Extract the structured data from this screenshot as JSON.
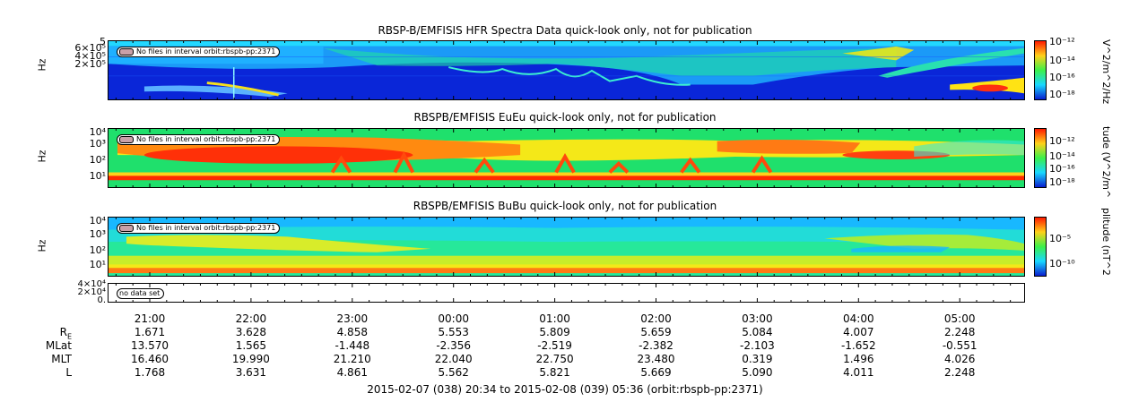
{
  "panels": [
    {
      "title": "RBSP-B/EMFISIS  HFR Spectra Data quick-look only, not for publication",
      "ylabel": "Hz",
      "yticks": [
        "6×10⁵",
        "4×10⁵",
        "2×10⁵",
        "5"
      ],
      "notice": "No files in interval orbit:rbspb-pp:2371",
      "colorbar_title": "V^2/m^2/Hz",
      "colorbar_ticks": [
        "10⁻¹²",
        "10⁻¹⁴",
        "10⁻¹⁶",
        "10⁻¹⁸"
      ]
    },
    {
      "title": "RBSPB/EMFISIS  EuEu quick-look only, not for publication",
      "ylabel": "Hz",
      "yticks": [
        "10⁴",
        "10³",
        "10²",
        "10¹"
      ],
      "notice": "No files in interval orbit:rbspb-pp:2371",
      "colorbar_title": "tude (V^2/m^",
      "colorbar_ticks": [
        "10⁻¹²",
        "10⁻¹⁴",
        "10⁻¹⁶",
        "10⁻¹⁸"
      ]
    },
    {
      "title": "RBSPB/EMFISIS  BuBu quick-look only, not for publication",
      "ylabel": "Hz",
      "yticks": [
        "10⁴",
        "10³",
        "10²",
        "10¹"
      ],
      "notice": "No files in interval orbit:rbspb-pp:2371",
      "colorbar_title": "plitude (nT^2",
      "colorbar_ticks": [
        "10⁻⁵",
        "10⁻¹⁰"
      ]
    },
    {
      "yticks": [
        "4×10⁴",
        "2×10⁴",
        "0."
      ],
      "notice": "no data set"
    }
  ],
  "chart_data": {
    "type": "heatmap",
    "x_tick_labels": [
      "21:00",
      "22:00",
      "23:00",
      "00:00",
      "01:00",
      "02:00",
      "03:00",
      "04:00",
      "05:00"
    ],
    "ephemeris": {
      "labels": [
        "R",
        "MLat",
        "MLT",
        "L"
      ],
      "rows": [
        [
          "1.671",
          "3.628",
          "4.858",
          "5.553",
          "5.809",
          "5.659",
          "5.084",
          "4.007",
          "2.248"
        ],
        [
          "13.570",
          "1.565",
          "-1.448",
          "-2.356",
          "-2.519",
          "-2.382",
          "-2.103",
          "-1.652",
          "-0.551"
        ],
        [
          "16.460",
          "19.990",
          "21.210",
          "22.040",
          "22.750",
          "23.480",
          "0.319",
          "1.496",
          "4.026"
        ],
        [
          "1.768",
          "3.631",
          "4.861",
          "5.562",
          "5.821",
          "5.669",
          "5.090",
          "4.011",
          "2.248"
        ]
      ]
    },
    "time_range": "2015-02-07 (038) 20:34 to 2015-02-08 (039) 05:36 (orbit:rbspb-pp:2371)"
  },
  "colors": {
    "spectrum_low": "#0a1ecf",
    "spectrum_mid": "#1ee06e",
    "spectrum_high": "#ff1a00"
  }
}
